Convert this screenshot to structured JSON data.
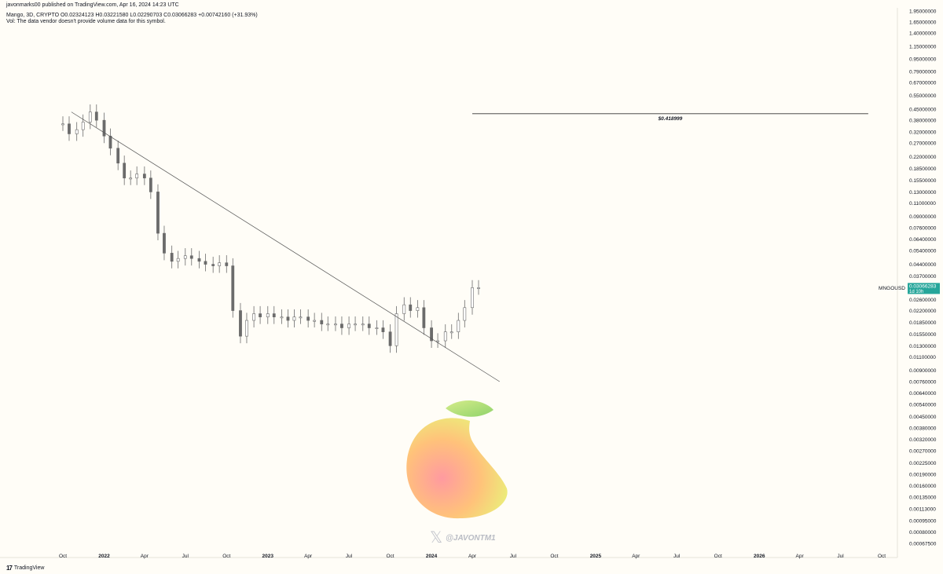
{
  "header": {
    "published": "javonmarks00 published on TradingView.com, Apr 16, 2024 14:23 UTC",
    "ohlc": "Mango, 3D, CRYPTO  O0.02324123  H0.03221580  L0.02290703  C0.03066283  +0.00742160 (+31.93%)",
    "volume_note": "Vol: The data vendor doesn't provide volume data for this symbol."
  },
  "footer": {
    "brand": "TradingView"
  },
  "watermark": {
    "handle": "@JAVONTM1"
  },
  "colors": {
    "background": "#fffdf7",
    "candles": "#6b6b6b",
    "trendline": "#555555",
    "badge": "#26a69a",
    "axis_text": "#131722"
  },
  "icons": [
    "tradingview-logo-icon",
    "x-logo-icon",
    "mango-logo-icon"
  ],
  "chart_data": {
    "type": "candlestick",
    "symbol": "Mango, 3D, CRYPTO",
    "y_scale": "log",
    "y_ticks": [
      1.95,
      1.65,
      1.4,
      1.15,
      0.95,
      0.79,
      0.67,
      0.55,
      0.45,
      0.38,
      0.32,
      0.27,
      0.22,
      0.185,
      0.155,
      0.13,
      0.11,
      0.09,
      0.076,
      0.064,
      0.054,
      0.044,
      0.037,
      0.031,
      0.026,
      0.022,
      0.0185,
      0.0155,
      0.013,
      0.011,
      0.009,
      0.0076,
      0.0064,
      0.0054,
      0.0045,
      0.0038,
      0.0032,
      0.0027,
      0.00225,
      0.0019,
      0.0016,
      0.00135,
      0.00113,
      0.00095,
      0.0008,
      0.000675
    ],
    "y_tick_labels": [
      "1.95000000",
      "1.65000000",
      "1.40000000",
      "1.15000000",
      "0.95000000",
      "0.79000000",
      "0.67000000",
      "0.55000000",
      "0.45000000",
      "0.38000000",
      "0.32000000",
      "0.27000000",
      "0.22000000",
      "0.18500000",
      "0.15500000",
      "0.13000000",
      "0.11000000",
      "0.09000000",
      "0.07600000",
      "0.06400000",
      "0.05400000",
      "0.04400000",
      "0.03700000",
      "",
      "0.02600000",
      "0.02200000",
      "0.01850000",
      "0.01550000",
      "0.01300000",
      "0.01100000",
      "0.00900000",
      "0.00760000",
      "0.00640000",
      "0.00540000",
      "0.00450000",
      "0.00380000",
      "0.00320000",
      "0.00270000",
      "0.00225000",
      "0.00190000",
      "0.00160000",
      "0.00135000",
      "0.00113000",
      "0.00095000",
      "0.00080000",
      "0.00067500"
    ],
    "x_tick_labels": [
      "Oct",
      "2022",
      "Apr",
      "Jul",
      "Oct",
      "2023",
      "Apr",
      "Jul",
      "Oct",
      "2024",
      "Apr",
      "Jul",
      "Oct",
      "2025",
      "Apr",
      "Jul",
      "Oct",
      "2026",
      "Apr",
      "Jul",
      "Oct"
    ],
    "x_tick_bold": [
      false,
      true,
      false,
      false,
      false,
      true,
      false,
      false,
      false,
      true,
      false,
      false,
      false,
      true,
      false,
      false,
      false,
      true,
      false,
      false,
      false
    ],
    "x_tick_dates": [
      "2021-10-01",
      "2022-01-01",
      "2022-04-01",
      "2022-07-01",
      "2022-10-01",
      "2023-01-01",
      "2023-04-01",
      "2023-07-01",
      "2023-10-01",
      "2024-01-01",
      "2024-04-01",
      "2024-07-01",
      "2024-10-01",
      "2025-01-01",
      "2025-04-01",
      "2025-07-01",
      "2025-10-01",
      "2026-01-01",
      "2026-04-01",
      "2026-07-01",
      "2026-10-01"
    ],
    "series": [
      {
        "x": [
          "2021-10-01",
          "2021-10-15",
          "2021-11-01",
          "2021-11-15",
          "2021-12-01",
          "2021-12-15",
          "2022-01-01",
          "2022-01-15",
          "2022-02-01",
          "2022-02-15",
          "2022-03-01",
          "2022-03-15",
          "2022-04-01",
          "2022-04-15",
          "2022-05-01",
          "2022-05-15",
          "2022-06-01",
          "2022-06-15",
          "2022-07-01",
          "2022-07-15",
          "2022-08-01",
          "2022-08-15",
          "2022-09-01",
          "2022-09-15",
          "2022-10-01",
          "2022-10-15",
          "2022-11-01",
          "2022-11-15",
          "2022-12-01",
          "2022-12-15",
          "2023-01-01",
          "2023-01-15",
          "2023-02-01",
          "2023-02-15",
          "2023-03-01",
          "2023-03-15",
          "2023-04-01",
          "2023-04-15",
          "2023-05-01",
          "2023-05-15",
          "2023-06-01",
          "2023-06-15",
          "2023-07-01",
          "2023-07-15",
          "2023-08-01",
          "2023-08-15",
          "2023-09-01",
          "2023-09-15",
          "2023-10-01",
          "2023-10-15",
          "2023-11-01",
          "2023-11-15",
          "2023-12-01",
          "2023-12-15",
          "2024-01-01",
          "2024-01-15",
          "2024-02-01",
          "2024-02-15",
          "2024-03-01",
          "2024-03-15",
          "2024-04-01",
          "2024-04-15"
        ],
        "y": [
          0.36,
          0.31,
          0.33,
          0.37,
          0.43,
          0.38,
          0.3,
          0.25,
          0.2,
          0.16,
          0.16,
          0.17,
          0.16,
          0.13,
          0.07,
          0.052,
          0.046,
          0.048,
          0.05,
          0.048,
          0.046,
          0.044,
          0.043,
          0.045,
          0.043,
          0.022,
          0.015,
          0.019,
          0.021,
          0.02,
          0.021,
          0.02,
          0.02,
          0.019,
          0.02,
          0.02,
          0.019,
          0.019,
          0.018,
          0.018,
          0.018,
          0.017,
          0.018,
          0.018,
          0.018,
          0.017,
          0.017,
          0.016,
          0.013,
          0.021,
          0.024,
          0.022,
          0.023,
          0.017,
          0.014,
          0.014,
          0.016,
          0.016,
          0.019,
          0.023,
          0.031,
          0.031
        ]
      }
    ],
    "trendline": {
      "x": [
        "2021-10-20",
        "2024-06-01"
      ],
      "y": [
        0.43,
        0.0076
      ]
    },
    "annotations": [
      {
        "text": "$0.418999",
        "y": 0.418999,
        "x_range": [
          "2024-04-01",
          "2026-09-01"
        ]
      }
    ],
    "last_price": {
      "symbol": "MNGOUSD",
      "value": "0.03066283",
      "countdown": "1d 10h"
    }
  }
}
